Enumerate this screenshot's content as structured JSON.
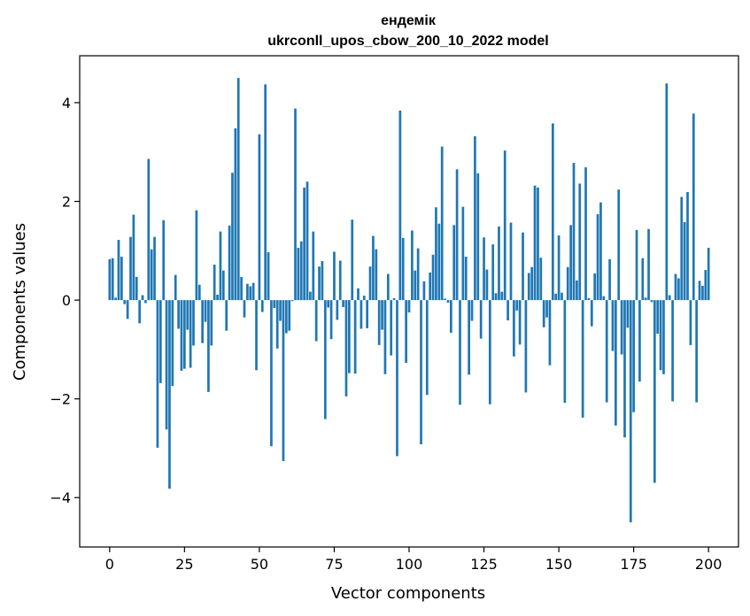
{
  "chart_data": {
    "type": "bar",
    "title_line1": "ендемік",
    "title_line2": "ukrconll_upos_cbow_200_10_2022 model",
    "xlabel": "Vector components",
    "ylabel": "Components values",
    "xlim": [
      -10,
      210
    ],
    "ylim": [
      -5,
      4.95
    ],
    "xticks": [
      0,
      25,
      50,
      75,
      100,
      125,
      150,
      175,
      200
    ],
    "yticks": [
      -4,
      -2,
      0,
      2,
      4
    ],
    "bar_color": "#1f77b4",
    "grid": false,
    "values": [
      0.83,
      0.85,
      0.05,
      1.22,
      0.88,
      -0.08,
      -0.38,
      1.28,
      1.73,
      0.47,
      -0.47,
      0.1,
      -0.06,
      2.86,
      1.03,
      1.28,
      -2.99,
      -1.68,
      1.62,
      -2.62,
      -3.82,
      -1.74,
      0.51,
      -0.58,
      -1.43,
      -1.39,
      -0.6,
      -1.37,
      -0.92,
      1.82,
      0.31,
      -0.87,
      -0.44,
      -1.86,
      -0.92,
      0.72,
      0.11,
      1.39,
      0.6,
      -0.62,
      1.51,
      2.58,
      3.48,
      4.5,
      0.47,
      -0.35,
      0.33,
      0.28,
      0.35,
      -1.42,
      3.36,
      -0.24,
      4.37,
      0.97,
      -2.96,
      -0.16,
      -0.98,
      -0.42,
      -3.26,
      -0.67,
      -0.62,
      -0.02,
      3.88,
      1.06,
      1.19,
      2.28,
      2.4,
      0.17,
      1.39,
      -0.83,
      0.68,
      0.79,
      -2.41,
      -0.15,
      -0.79,
      0.98,
      -0.4,
      0.8,
      -0.14,
      -1.95,
      -1.48,
      1.63,
      -1.49,
      0.24,
      -0.58,
      0.09,
      -0.57,
      0.68,
      1.3,
      1.03,
      -0.91,
      -0.6,
      -1.5,
      0.53,
      -1.12,
      0.04,
      -3.16,
      3.84,
      1.26,
      -1.27,
      -0.25,
      1.41,
      0.6,
      1.05,
      -2.92,
      0.38,
      -1.92,
      0.56,
      0.92,
      1.88,
      1.55,
      3.11,
      0.03,
      -0.05,
      -0.66,
      1.52,
      2.65,
      -2.12,
      1.89,
      0.88,
      -1.51,
      -0.42,
      3.32,
      2.57,
      -0.78,
      1.27,
      0.62,
      -2.11,
      1.13,
      0.14,
      1.49,
      0.17,
      3.03,
      -0.41,
      1.57,
      -1.14,
      -0.21,
      -0.9,
      1.37,
      -1.87,
      0.55,
      0.67,
      2.32,
      2.28,
      0.86,
      -0.55,
      -0.35,
      -1.32,
      3.58,
      0.13,
      1.31,
      0.15,
      -2.08,
      0.67,
      1.52,
      2.78,
      0.4,
      2.36,
      -2.38,
      2.69,
      0.04,
      -0.53,
      0.54,
      1.74,
      1.98,
      0.08,
      -2.07,
      0.83,
      -1.03,
      -2.54,
      2.24,
      -1.1,
      -2.78,
      -0.56,
      -4.5,
      -2.27,
      1.42,
      -1.65,
      0.85,
      0.05,
      1.44,
      -0.04,
      -3.7,
      -0.68,
      -1.42,
      -1.5,
      4.39,
      0.1,
      -2.05,
      0.53,
      0.44,
      2.09,
      1.58,
      2.19,
      -0.91,
      3.78,
      -2.07,
      0.39,
      0.29,
      0.61,
      1.06
    ]
  }
}
